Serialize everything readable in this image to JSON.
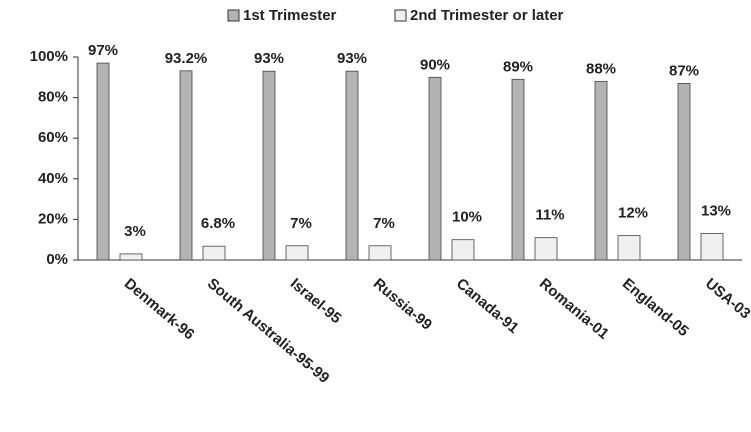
{
  "chart_data": {
    "type": "bar",
    "categories": [
      "Denmark-96",
      "South Australia-95-99",
      "Israel-95",
      "Russia-99",
      "Canada-91",
      "Romania-01",
      "England-05",
      "USA-03"
    ],
    "series": [
      {
        "name": "1st Trimester",
        "color": "#b3b3b3",
        "values": [
          97,
          93.2,
          93,
          93,
          90,
          89,
          88,
          87
        ],
        "value_labels": [
          "97%",
          "93.2%",
          "93%",
          "93%",
          "90%",
          "89%",
          "88%",
          "87%"
        ]
      },
      {
        "name": "2nd Trimester or later",
        "color": "#f0f0f0",
        "values": [
          3,
          6.8,
          7,
          7,
          10,
          11,
          12,
          13
        ],
        "value_labels": [
          "3%",
          "6.8%",
          "7%",
          "7%",
          "10%",
          "11%",
          "12%",
          "13%"
        ]
      }
    ],
    "ylim": [
      0,
      100
    ],
    "yticks": [
      {
        "value": 0,
        "label": "0%"
      },
      {
        "value": 20,
        "label": "20%"
      },
      {
        "value": 40,
        "label": "40%"
      },
      {
        "value": 60,
        "label": "60%"
      },
      {
        "value": 80,
        "label": "80%"
      },
      {
        "value": 100,
        "label": "100%"
      }
    ]
  }
}
